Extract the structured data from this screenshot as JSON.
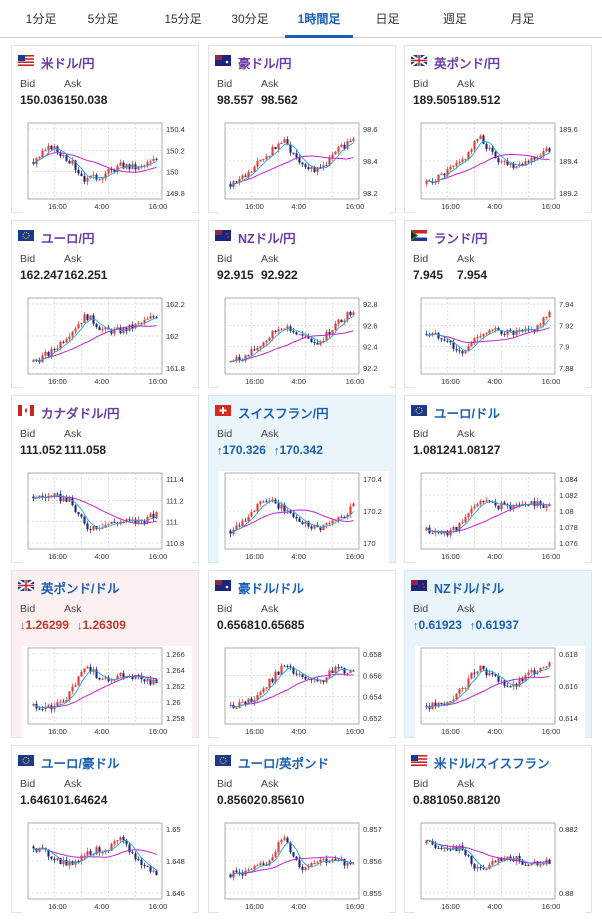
{
  "tabs": [
    {
      "label": "1分足",
      "active": false
    },
    {
      "label": "5分足",
      "active": false
    },
    {
      "label": "15分足",
      "active": false
    },
    {
      "label": "30分足",
      "active": false
    },
    {
      "label": "1時間足",
      "active": true
    },
    {
      "label": "日足",
      "active": false
    },
    {
      "label": "週足",
      "active": false
    },
    {
      "label": "月足",
      "active": false
    }
  ],
  "bid_label": "Bid",
  "ask_label": "Ask",
  "x_ticks": [
    "16:00",
    "4:00",
    "16:00"
  ],
  "colors": {
    "up_candle": "#e53935",
    "down_candle": "#1a237e",
    "ma_short": "#22a7c9",
    "ma_long": "#c026d3",
    "grid": "#c8c8c8"
  },
  "cards": [
    {
      "pair": "米ドル/円",
      "flag": "us",
      "bid": "150.036",
      "ask": "150.038",
      "state": "",
      "y_ticks": [
        "150.4",
        "150.2",
        "150",
        "149.8"
      ],
      "trend": [
        0.5,
        0.75,
        0.55,
        0.2,
        0.3,
        0.45,
        0.4,
        0.55
      ]
    },
    {
      "pair": "豪ドル/円",
      "flag": "au",
      "bid": "98.557",
      "ask": "98.562",
      "state": "",
      "y_ticks": [
        "98.6",
        "98.4",
        "98.2"
      ],
      "trend": [
        0.15,
        0.3,
        0.6,
        0.85,
        0.5,
        0.35,
        0.65,
        0.9
      ]
    },
    {
      "pair": "英ポンド/円",
      "flag": "gb",
      "bid": "189.505",
      "ask": "189.512",
      "state": "",
      "y_ticks": [
        "189.6",
        "189.4",
        "189.2"
      ],
      "trend": [
        0.15,
        0.3,
        0.5,
        0.9,
        0.55,
        0.45,
        0.55,
        0.7
      ]
    },
    {
      "pair": "ユーロ/円",
      "flag": "eu",
      "bid": "162.247",
      "ask": "162.251",
      "state": "",
      "y_ticks": [
        "162.2",
        "162",
        "161.8"
      ],
      "trend": [
        0.1,
        0.25,
        0.55,
        0.85,
        0.6,
        0.6,
        0.7,
        0.85
      ]
    },
    {
      "pair": "NZドル/円",
      "flag": "nz",
      "bid": "92.915",
      "ask": "92.922",
      "state": "",
      "y_ticks": [
        "92.8",
        "92.6",
        "92.4",
        "92.2"
      ],
      "trend": [
        0.1,
        0.2,
        0.45,
        0.7,
        0.5,
        0.4,
        0.7,
        0.95
      ]
    },
    {
      "pair": "ランド/円",
      "flag": "za",
      "bid": "7.945",
      "ask": "7.954",
      "state": "",
      "y_ticks": [
        "7.94",
        "7.92",
        "7.9",
        "7.88"
      ],
      "trend": [
        0.55,
        0.5,
        0.2,
        0.55,
        0.6,
        0.55,
        0.6,
        0.85
      ]
    },
    {
      "pair": "カナダドル/円",
      "flag": "ca",
      "bid": "111.052",
      "ask": "111.058",
      "state": "",
      "y_ticks": [
        "111.4",
        "111.2",
        "111",
        "110.8"
      ],
      "trend": [
        0.75,
        0.75,
        0.7,
        0.25,
        0.3,
        0.35,
        0.35,
        0.45
      ]
    },
    {
      "pair": "スイスフラン/円",
      "flag": "ch",
      "bid": "170.326",
      "ask": "170.342",
      "state": "up",
      "y_ticks": [
        "170.4",
        "170.2",
        "170"
      ],
      "trend": [
        0.2,
        0.45,
        0.7,
        0.55,
        0.35,
        0.25,
        0.35,
        0.6
      ]
    },
    {
      "pair": "ユーロ/ドル",
      "flag": "eu-us",
      "bid": "1.08124",
      "ask": "1.08127",
      "state": "",
      "y_ticks": [
        "1.084",
        "1.082",
        "1.08",
        "1.078",
        "1.076"
      ],
      "trend": [
        0.2,
        0.15,
        0.3,
        0.7,
        0.6,
        0.6,
        0.65,
        0.6
      ]
    },
    {
      "pair": "英ポンド/ドル",
      "flag": "gb-us",
      "bid": "1.26299",
      "ask": "1.26309",
      "state": "down",
      "y_ticks": [
        "1.266",
        "1.264",
        "1.262",
        "1.26",
        "1.258"
      ],
      "trend": [
        0.2,
        0.15,
        0.35,
        0.85,
        0.6,
        0.7,
        0.65,
        0.55
      ]
    },
    {
      "pair": "豪ドル/ドル",
      "flag": "au-us",
      "bid": "0.65681",
      "ask": "0.65685",
      "state": "",
      "y_ticks": [
        "0.658",
        "0.656",
        "0.654",
        "0.652"
      ],
      "trend": [
        0.2,
        0.25,
        0.5,
        0.85,
        0.65,
        0.55,
        0.8,
        0.75
      ]
    },
    {
      "pair": "NZドル/ドル",
      "flag": "nz-us",
      "bid": "0.61923",
      "ask": "0.61937",
      "state": "up",
      "y_ticks": [
        "0.618",
        "0.616",
        "0.614"
      ],
      "trend": [
        0.2,
        0.2,
        0.45,
        0.85,
        0.6,
        0.5,
        0.75,
        0.9
      ]
    },
    {
      "pair": "ユーロ/豪ドル",
      "flag": "eu-au",
      "bid": "1.64610",
      "ask": "1.64624",
      "state": "",
      "y_ticks": [
        "1.65",
        "1.648",
        "1.646"
      ],
      "trend": [
        0.75,
        0.6,
        0.45,
        0.65,
        0.7,
        0.85,
        0.5,
        0.3
      ]
    },
    {
      "pair": "ユーロ/英ポンド",
      "flag": "eu-gb",
      "bid": "0.85602",
      "ask": "0.85610",
      "state": "",
      "y_ticks": [
        "0.857",
        "0.856",
        "0.855"
      ],
      "trend": [
        0.3,
        0.35,
        0.45,
        0.9,
        0.4,
        0.55,
        0.5,
        0.5
      ]
    },
    {
      "pair": "米ドル/スイスフラン",
      "flag": "us-ch",
      "bid": "0.88105",
      "ask": "0.88120",
      "state": "",
      "y_ticks": [
        "0.882",
        "0.88"
      ],
      "trend": [
        0.8,
        0.75,
        0.7,
        0.35,
        0.5,
        0.55,
        0.45,
        0.5
      ]
    }
  ]
}
